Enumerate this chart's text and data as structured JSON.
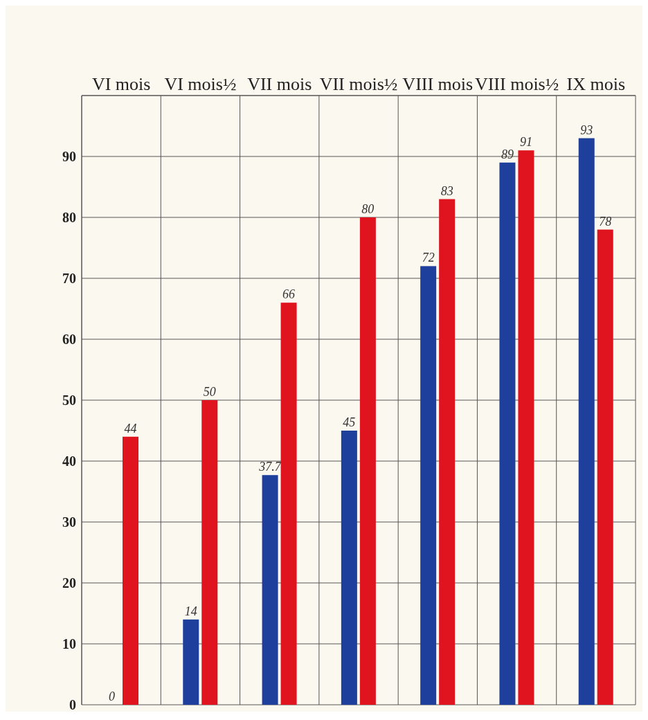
{
  "chart_data": {
    "type": "bar",
    "categories": [
      "VI mois",
      "VI mois½",
      "VII mois",
      "VII mois½",
      "VIII mois",
      "VIII mois½",
      "IX mois"
    ],
    "series": [
      {
        "color": "#1f3f9c",
        "values": [
          0,
          14,
          37.7,
          45,
          72,
          89,
          93
        ]
      },
      {
        "color": "#e0141e",
        "values": [
          44,
          50,
          66,
          80,
          83,
          91,
          78
        ]
      }
    ],
    "ylim": [
      0,
      100
    ],
    "yticks": [
      0,
      10,
      20,
      30,
      40,
      50,
      60,
      70,
      80,
      90
    ],
    "grid": true,
    "data_labels": true
  }
}
